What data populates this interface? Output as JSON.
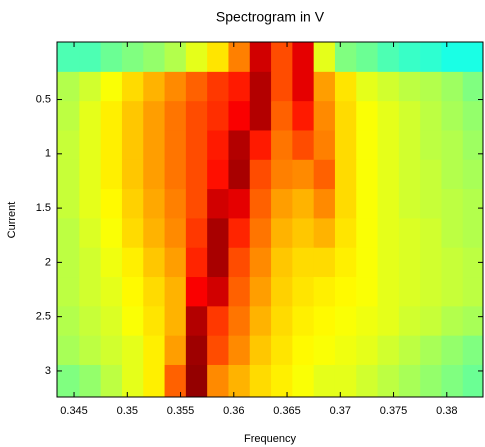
{
  "chart_data": {
    "type": "heatmap",
    "title": "Spectrogram in V",
    "xlabel": "Frequency",
    "ylabel": "Current",
    "colormap": "jet",
    "y_reversed": true,
    "xlim": [
      0.3434,
      0.3834
    ],
    "ylim": [
      -0.03,
      3.24
    ],
    "xticks": [
      0.345,
      0.35,
      0.355,
      0.36,
      0.365,
      0.37,
      0.375,
      0.38
    ],
    "yticks": [
      0.5,
      1,
      1.5,
      2,
      2.5,
      3
    ],
    "x": [
      0.3445,
      0.3465,
      0.3485,
      0.3505,
      0.3525,
      0.3545,
      0.3565,
      0.3585,
      0.3605,
      0.3625,
      0.3645,
      0.3665,
      0.3685,
      0.3705,
      0.3725,
      0.3745,
      0.3765,
      0.3785,
      0.3805,
      0.3825
    ],
    "y": [
      0.11,
      0.38,
      0.65,
      0.92,
      1.19,
      1.46,
      1.73,
      2.0,
      2.27,
      2.54,
      2.81,
      3.08
    ],
    "z": [
      [
        0.45,
        0.45,
        0.48,
        0.5,
        0.52,
        0.55,
        0.6,
        0.65,
        0.75,
        0.92,
        0.8,
        0.9,
        0.6,
        0.5,
        0.48,
        0.45,
        0.43,
        0.42,
        0.4,
        0.4
      ],
      [
        0.55,
        0.58,
        0.62,
        0.66,
        0.7,
        0.74,
        0.78,
        0.82,
        0.85,
        0.95,
        0.8,
        0.9,
        0.72,
        0.65,
        0.6,
        0.58,
        0.56,
        0.55,
        0.53,
        0.5
      ],
      [
        0.56,
        0.6,
        0.64,
        0.68,
        0.72,
        0.76,
        0.8,
        0.83,
        0.88,
        0.95,
        0.78,
        0.85,
        0.74,
        0.66,
        0.62,
        0.6,
        0.58,
        0.56,
        0.54,
        0.52
      ],
      [
        0.57,
        0.6,
        0.64,
        0.68,
        0.72,
        0.76,
        0.8,
        0.85,
        0.95,
        0.85,
        0.76,
        0.8,
        0.75,
        0.66,
        0.62,
        0.6,
        0.58,
        0.56,
        0.55,
        0.53
      ],
      [
        0.57,
        0.6,
        0.64,
        0.68,
        0.72,
        0.76,
        0.8,
        0.86,
        0.96,
        0.8,
        0.75,
        0.74,
        0.78,
        0.66,
        0.62,
        0.6,
        0.58,
        0.57,
        0.55,
        0.54
      ],
      [
        0.57,
        0.6,
        0.63,
        0.67,
        0.71,
        0.75,
        0.8,
        0.92,
        0.9,
        0.78,
        0.72,
        0.7,
        0.74,
        0.66,
        0.62,
        0.6,
        0.58,
        0.57,
        0.56,
        0.55
      ],
      [
        0.56,
        0.59,
        0.62,
        0.66,
        0.7,
        0.74,
        0.82,
        0.96,
        0.84,
        0.76,
        0.7,
        0.68,
        0.7,
        0.65,
        0.62,
        0.6,
        0.59,
        0.58,
        0.56,
        0.55
      ],
      [
        0.56,
        0.58,
        0.61,
        0.64,
        0.68,
        0.72,
        0.84,
        0.96,
        0.8,
        0.74,
        0.68,
        0.66,
        0.66,
        0.64,
        0.62,
        0.6,
        0.59,
        0.58,
        0.57,
        0.56
      ],
      [
        0.56,
        0.58,
        0.6,
        0.63,
        0.66,
        0.7,
        0.88,
        0.92,
        0.78,
        0.72,
        0.67,
        0.65,
        0.64,
        0.63,
        0.62,
        0.6,
        0.59,
        0.58,
        0.57,
        0.56
      ],
      [
        0.55,
        0.57,
        0.59,
        0.62,
        0.65,
        0.7,
        0.95,
        0.82,
        0.76,
        0.7,
        0.66,
        0.64,
        0.63,
        0.62,
        0.61,
        0.6,
        0.58,
        0.57,
        0.55,
        0.54
      ],
      [
        0.54,
        0.56,
        0.58,
        0.6,
        0.64,
        0.72,
        0.97,
        0.8,
        0.74,
        0.68,
        0.65,
        0.63,
        0.62,
        0.61,
        0.6,
        0.58,
        0.56,
        0.54,
        0.52,
        0.5
      ],
      [
        0.5,
        0.52,
        0.56,
        0.6,
        0.64,
        0.78,
        0.98,
        0.74,
        0.7,
        0.66,
        0.64,
        0.62,
        0.6,
        0.6,
        0.58,
        0.56,
        0.54,
        0.52,
        0.5,
        0.48
      ]
    ]
  }
}
